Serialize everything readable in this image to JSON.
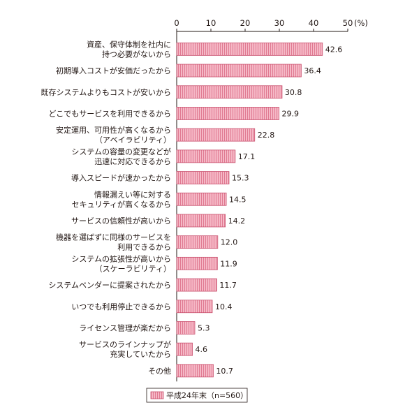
{
  "chart_data": {
    "type": "bar",
    "orientation": "horizontal",
    "categories": [
      [
        "資産、保守体制を社内に",
        "持つ必要がないから"
      ],
      [
        "初期導入コストが安価だったから"
      ],
      [
        "既存システムよりもコストが安いから"
      ],
      [
        "どこでもサービスを利用できるから"
      ],
      [
        "安定運用、可用性が高くなるから",
        "（アベイラビリティ）"
      ],
      [
        "システムの容量の変更などが",
        "迅速に対応できるから"
      ],
      [
        "導入スピードが速かったから"
      ],
      [
        "情報漏えい等に対する",
        "セキュリティが高くなるから"
      ],
      [
        "サービスの信頼性が高いから"
      ],
      [
        "機器を選ばずに同様のサービスを",
        "利用できるから"
      ],
      [
        "システムの拡張性が高いから",
        "（スケーラビリティ）"
      ],
      [
        "システムベンダーに提案されたから"
      ],
      [
        "いつでも利用停止できるから"
      ],
      [
        "ライセンス管理が楽だから"
      ],
      [
        "サービスのラインナップが",
        "充実していたから"
      ],
      [
        "その他"
      ]
    ],
    "values": [
      42.6,
      36.4,
      30.8,
      29.9,
      22.8,
      17.1,
      15.3,
      14.5,
      14.2,
      12.0,
      11.9,
      11.7,
      10.4,
      5.3,
      4.6,
      10.7
    ],
    "value_labels": [
      "42.6",
      "36.4",
      "30.8",
      "29.9",
      "22.8",
      "17.1",
      "15.3",
      "14.5",
      "14.2",
      "12.0",
      "11.9",
      "11.7",
      "10.4",
      "5.3",
      "4.6",
      "10.7"
    ],
    "xlim": [
      0,
      50
    ],
    "ticks": [
      "0",
      "10",
      "20",
      "30",
      "40",
      "50"
    ],
    "unit_label": "(%)",
    "series": [
      {
        "name": "平成24年末（n=560）",
        "values": [
          42.6,
          36.4,
          30.8,
          29.9,
          22.8,
          17.1,
          15.3,
          14.5,
          14.2,
          12.0,
          11.9,
          11.7,
          10.4,
          5.3,
          4.6,
          10.7
        ]
      }
    ],
    "legend_position": "bottom-center",
    "grid": false,
    "colors": {
      "bar_fill": "#f5b8c6",
      "bar_stripe": "#e07a92",
      "bar_stroke": "#c94f6d",
      "axis": "#231815"
    }
  }
}
